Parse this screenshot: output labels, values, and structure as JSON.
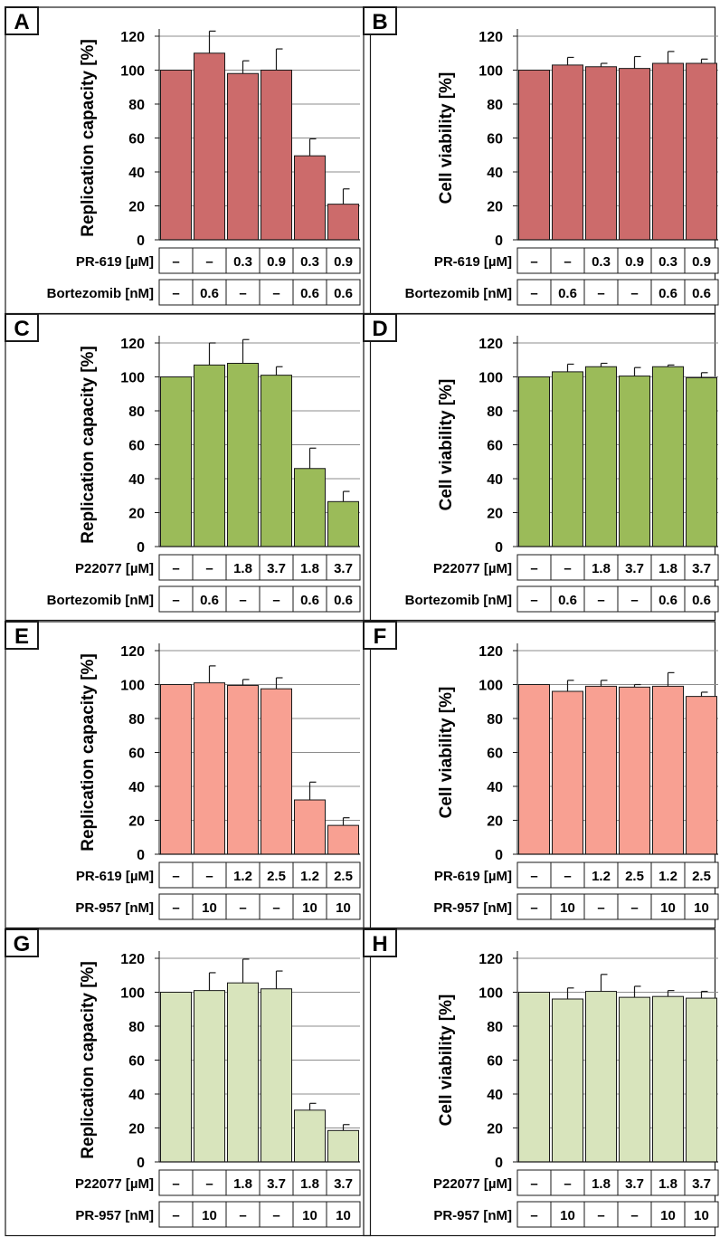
{
  "colors": {
    "bar_dark_red": "#cc6b6b",
    "bar_green": "#9bbb59",
    "bar_salmon": "#f8a092",
    "bar_pale_green": "#d8e4bc",
    "bar_edge": "#1a1a1a",
    "grid": "#8c8c8c"
  },
  "chart_data": [
    {
      "type": "bar",
      "panel": "A",
      "color": "#cc6b6b",
      "ylabel": "Replication capacity [%]",
      "ylim": [
        0,
        120
      ],
      "yticks": [
        0,
        20,
        40,
        60,
        80,
        100,
        120
      ],
      "values": [
        100,
        110,
        98,
        100,
        49.5,
        21
      ],
      "errors": [
        0,
        13,
        7.5,
        12.5,
        10,
        9
      ],
      "rows": [
        {
          "label": "PR-619 [µM]",
          "values": [
            "–",
            "–",
            "0.3",
            "0.9",
            "0.3",
            "0.9"
          ]
        },
        {
          "label": "Bortezomib [nM]",
          "values": [
            "–",
            "0.6",
            "–",
            "–",
            "0.6",
            "0.6"
          ]
        }
      ]
    },
    {
      "type": "bar",
      "panel": "B",
      "color": "#cc6b6b",
      "ylabel": "Cell viability [%]",
      "ylim": [
        0,
        120
      ],
      "yticks": [
        0,
        20,
        40,
        60,
        80,
        100,
        120
      ],
      "values": [
        100,
        103,
        102,
        101,
        104,
        104
      ],
      "errors": [
        0,
        4.5,
        2,
        7,
        7,
        2.5
      ],
      "rows": [
        {
          "label": "PR-619 [µM]",
          "values": [
            "–",
            "–",
            "0.3",
            "0.9",
            "0.3",
            "0.9"
          ]
        },
        {
          "label": "Bortezomib [nM]",
          "values": [
            "–",
            "0.6",
            "–",
            "–",
            "0.6",
            "0.6"
          ]
        }
      ]
    },
    {
      "type": "bar",
      "panel": "C",
      "color": "#9bbb59",
      "ylabel": "Replication capacity [%]",
      "ylim": [
        0,
        120
      ],
      "yticks": [
        0,
        20,
        40,
        60,
        80,
        100,
        120
      ],
      "values": [
        100,
        107,
        108,
        101,
        46,
        26.5
      ],
      "errors": [
        0,
        13,
        14,
        5,
        12,
        6
      ],
      "rows": [
        {
          "label": "P22077 [µM]",
          "values": [
            "–",
            "–",
            "1.8",
            "3.7",
            "1.8",
            "3.7"
          ]
        },
        {
          "label": "Bortezomib [nM]",
          "values": [
            "–",
            "0.6",
            "–",
            "–",
            "0.6",
            "0.6"
          ]
        }
      ]
    },
    {
      "type": "bar",
      "panel": "D",
      "color": "#9bbb59",
      "ylabel": "Cell viability [%]",
      "ylim": [
        0,
        120
      ],
      "yticks": [
        0,
        20,
        40,
        60,
        80,
        100,
        120
      ],
      "values": [
        100,
        103,
        106,
        100.5,
        106,
        99.5
      ],
      "errors": [
        0,
        4.5,
        2,
        5,
        1,
        3
      ],
      "rows": [
        {
          "label": "P22077 [µM]",
          "values": [
            "–",
            "–",
            "1.8",
            "3.7",
            "1.8",
            "3.7"
          ]
        },
        {
          "label": "Bortezomib [nM]",
          "values": [
            "–",
            "0.6",
            "–",
            "–",
            "0.6",
            "0.6"
          ]
        }
      ]
    },
    {
      "type": "bar",
      "panel": "E",
      "color": "#f8a092",
      "ylabel": "Replication capacity [%]",
      "ylim": [
        0,
        120
      ],
      "yticks": [
        0,
        20,
        40,
        60,
        80,
        100,
        120
      ],
      "values": [
        100,
        101,
        99.5,
        97.5,
        32,
        17
      ],
      "errors": [
        0,
        10,
        3.5,
        6.5,
        10.5,
        4.5
      ],
      "rows": [
        {
          "label": "PR-619 [µM]",
          "values": [
            "–",
            "–",
            "1.2",
            "2.5",
            "1.2",
            "2.5"
          ]
        },
        {
          "label": "PR-957 [nM]",
          "values": [
            "–",
            "10",
            "–",
            "–",
            "10",
            "10"
          ]
        }
      ]
    },
    {
      "type": "bar",
      "panel": "F",
      "color": "#f8a092",
      "ylabel": "Cell viability [%]",
      "ylim": [
        0,
        120
      ],
      "yticks": [
        0,
        20,
        40,
        60,
        80,
        100,
        120
      ],
      "values": [
        100,
        96,
        99,
        98.5,
        99,
        93
      ],
      "errors": [
        0,
        6.5,
        3.5,
        1.5,
        8,
        2.5
      ],
      "rows": [
        {
          "label": "PR-619 [µM]",
          "values": [
            "–",
            "–",
            "1.2",
            "2.5",
            "1.2",
            "2.5"
          ]
        },
        {
          "label": "PR-957 [nM]",
          "values": [
            "–",
            "10",
            "–",
            "–",
            "10",
            "10"
          ]
        }
      ]
    },
    {
      "type": "bar",
      "panel": "G",
      "color": "#d8e4bc",
      "ylabel": "Replication capacity [%]",
      "ylim": [
        0,
        120
      ],
      "yticks": [
        0,
        20,
        40,
        60,
        80,
        100,
        120
      ],
      "values": [
        100,
        101,
        105.5,
        102,
        30.5,
        18.5
      ],
      "errors": [
        0,
        10.5,
        14,
        10.5,
        4,
        3.5
      ],
      "rows": [
        {
          "label": "P22077 [µM]",
          "values": [
            "–",
            "–",
            "1.8",
            "3.7",
            "1.8",
            "3.7"
          ]
        },
        {
          "label": "PR-957 [nM]",
          "values": [
            "–",
            "10",
            "–",
            "–",
            "10",
            "10"
          ]
        }
      ]
    },
    {
      "type": "bar",
      "panel": "H",
      "color": "#d8e4bc",
      "ylabel": "Cell viability [%]",
      "ylim": [
        0,
        120
      ],
      "yticks": [
        0,
        20,
        40,
        60,
        80,
        100,
        120
      ],
      "values": [
        100,
        96,
        100.5,
        97,
        97.5,
        96.5
      ],
      "errors": [
        0,
        6.5,
        10,
        6.5,
        3.5,
        4
      ],
      "rows": [
        {
          "label": "P22077 [µM]",
          "values": [
            "–",
            "–",
            "1.8",
            "3.7",
            "1.8",
            "3.7"
          ]
        },
        {
          "label": "PR-957 [nM]",
          "values": [
            "–",
            "10",
            "–",
            "–",
            "10",
            "10"
          ]
        }
      ]
    }
  ]
}
